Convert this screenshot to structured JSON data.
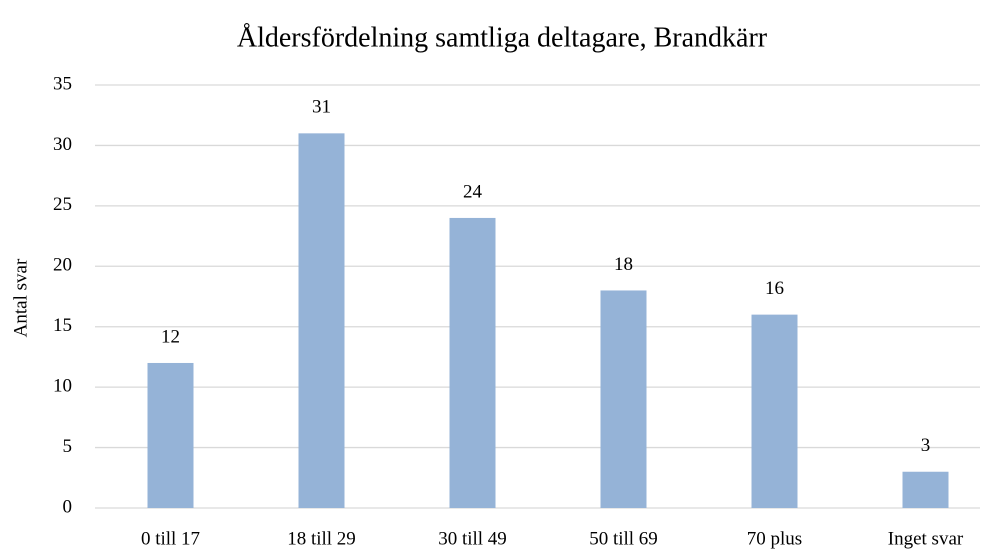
{
  "chart_data": {
    "type": "bar",
    "title": "Åldersfördelning samtliga deltagare, Brandkärr",
    "y_label": "Antal svar",
    "categories": [
      "0 till 17",
      "18 till 29",
      "30 till 49",
      "50 till 69",
      "70 plus",
      "Inget svar"
    ],
    "values": [
      12,
      31,
      24,
      18,
      16,
      3
    ],
    "color": "#95b3d7",
    "ylim": [
      0,
      35
    ],
    "yticks": [
      0,
      5,
      10,
      15,
      20,
      25,
      30,
      35
    ],
    "grid": true
  }
}
